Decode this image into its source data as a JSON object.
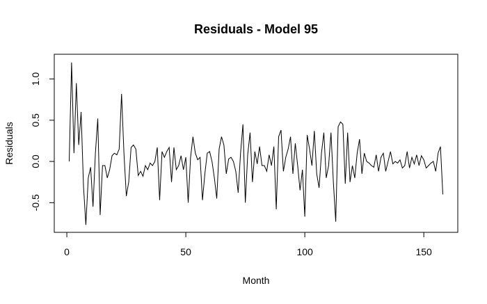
{
  "chart_data": {
    "type": "line",
    "title": "Residuals - Model 95",
    "x_label": "Month",
    "y_label": "Residuals",
    "x": [
      1,
      2,
      3,
      4,
      5,
      6,
      7,
      8,
      9,
      10,
      11,
      12,
      13,
      14,
      15,
      16,
      17,
      18,
      19,
      20,
      21,
      22,
      23,
      24,
      25,
      26,
      27,
      28,
      29,
      30,
      31,
      32,
      33,
      34,
      35,
      36,
      37,
      38,
      39,
      40,
      41,
      42,
      43,
      44,
      45,
      46,
      47,
      48,
      49,
      50,
      51,
      52,
      53,
      54,
      55,
      56,
      57,
      58,
      59,
      60,
      61,
      62,
      63,
      64,
      65,
      66,
      67,
      68,
      69,
      70,
      71,
      72,
      73,
      74,
      75,
      76,
      77,
      78,
      79,
      80,
      81,
      82,
      83,
      84,
      85,
      86,
      87,
      88,
      89,
      90,
      91,
      92,
      93,
      94,
      95,
      96,
      97,
      98,
      99,
      100,
      101,
      102,
      103,
      104,
      105,
      106,
      107,
      108,
      109,
      110,
      111,
      112,
      113,
      114,
      115,
      116,
      117,
      118,
      119,
      120,
      121,
      122,
      123,
      124,
      125,
      126,
      127,
      128,
      129,
      130,
      131,
      132,
      133,
      134,
      135,
      136,
      137,
      138,
      139,
      140,
      141,
      142,
      143,
      144,
      145,
      146,
      147,
      148,
      149,
      150,
      151,
      152,
      153,
      154,
      155,
      156,
      157,
      158
    ],
    "series": [
      {
        "color": "#000000",
        "values": [
          0.0,
          1.2,
          0.1,
          0.95,
          0.2,
          0.6,
          -0.3,
          -0.77,
          -0.2,
          -0.07,
          -0.55,
          0.1,
          0.52,
          -0.65,
          -0.05,
          -0.05,
          -0.2,
          -0.1,
          0.07,
          0.1,
          0.08,
          0.15,
          0.82,
          0.1,
          -0.42,
          -0.25,
          0.17,
          0.2,
          0.15,
          -0.17,
          -0.12,
          -0.18,
          -0.05,
          -0.1,
          -0.02,
          -0.05,
          0.0,
          0.17,
          -0.47,
          0.12,
          0.05,
          0.12,
          0.17,
          -0.25,
          0.17,
          -0.1,
          -0.05,
          0.07,
          -0.1,
          0.05,
          -0.5,
          0.05,
          0.3,
          0.1,
          0.02,
          0.05,
          -0.47,
          -0.15,
          0.1,
          0.12,
          0.0,
          -0.2,
          -0.45,
          0.15,
          0.3,
          0.2,
          -0.15,
          0.03,
          0.05,
          0.0,
          -0.12,
          -0.38,
          0.1,
          0.45,
          -0.5,
          0.08,
          0.35,
          -0.25,
          0.12,
          -0.03,
          0.18,
          -0.05,
          -0.05,
          -0.12,
          0.08,
          -0.05,
          0.18,
          -0.58,
          0.3,
          0.38,
          -0.12,
          0.05,
          0.15,
          0.3,
          -0.15,
          0.22,
          -0.05,
          -0.35,
          -0.1,
          -0.67,
          0.32,
          0.15,
          -0.05,
          0.37,
          -0.15,
          -0.32,
          0.1,
          0.35,
          -0.2,
          -0.05,
          0.35,
          -0.25,
          -0.73,
          0.42,
          0.48,
          0.45,
          -0.27,
          0.35,
          -0.25,
          -0.05,
          -0.2,
          0.1,
          0.27,
          -0.15,
          0.1,
          0.0,
          -0.02,
          -0.05,
          -0.07,
          0.08,
          -0.12,
          0.05,
          0.1,
          -0.12,
          0.0,
          0.12,
          -0.03,
          0.0,
          -0.02,
          0.02,
          -0.08,
          -0.05,
          0.12,
          -0.08,
          0.05,
          -0.03,
          0.08,
          -0.05,
          0.07,
          0.02,
          -0.08,
          -0.05,
          -0.02,
          0.0,
          -0.12,
          0.1,
          0.18,
          -0.4
        ]
      }
    ],
    "xlim": [
      -5.28,
      164.28
    ],
    "xticks": [
      0,
      50,
      100,
      150
    ],
    "ylim": [
      -0.86,
      1.3
    ],
    "yticks": [
      {
        "value": -0.5,
        "label": "-0.5"
      },
      {
        "value": 0,
        "label": "0.0"
      },
      {
        "value": 0.5,
        "label": "0.5"
      },
      {
        "value": 1,
        "label": "1.0"
      }
    ]
  }
}
